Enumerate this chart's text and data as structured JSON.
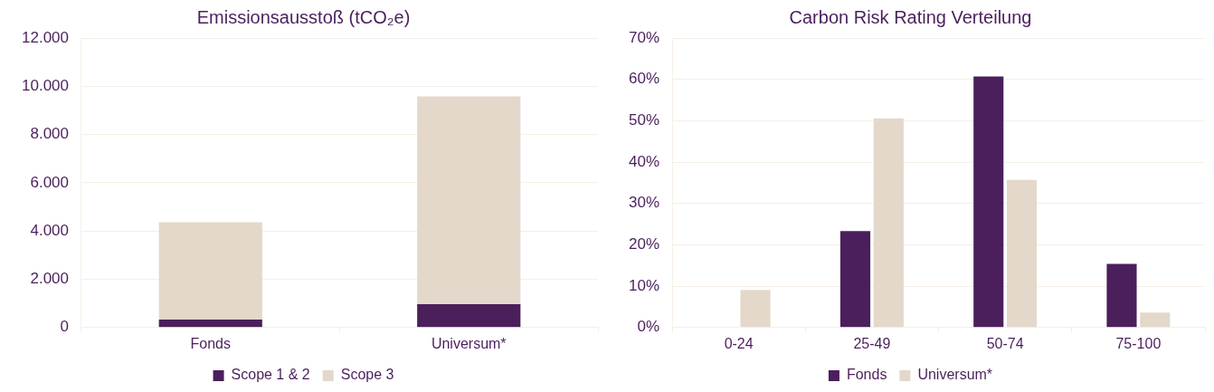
{
  "chart_data": [
    {
      "type": "bar",
      "title": "Emissionsausstoß (tCO₂e)",
      "categories": [
        "Fonds",
        "Universum*"
      ],
      "stacked": true,
      "series": [
        {
          "name": "Scope 1 & 2",
          "color": "#4a1f5c",
          "values": [
            330,
            970
          ]
        },
        {
          "name": "Scope 3",
          "color": "#e3d8ca",
          "values": [
            4030,
            8610
          ]
        }
      ],
      "ylim": [
        0,
        12000
      ],
      "yticks": [
        {
          "value": 0,
          "label": "0"
        },
        {
          "value": 2000,
          "label": "2.000"
        },
        {
          "value": 4000,
          "label": "4.000"
        },
        {
          "value": 6000,
          "label": "6.000"
        },
        {
          "value": 8000,
          "label": "8.000"
        },
        {
          "value": 10000,
          "label": "10.000"
        },
        {
          "value": 12000,
          "label": "12.000"
        }
      ],
      "grid": "y",
      "legend": "bottom"
    },
    {
      "type": "bar",
      "title": "Carbon Risk Rating Verteilung",
      "categories": [
        "0-24",
        "25-49",
        "50-74",
        "75-100"
      ],
      "series": [
        {
          "name": "Fonds",
          "color": "#4a1f5c",
          "values": [
            0,
            23.3,
            60.7,
            15.4
          ]
        },
        {
          "name": "Universum*",
          "color": "#e3d8ca",
          "values": [
            9.1,
            50.6,
            35.7,
            3.6
          ]
        }
      ],
      "ylim": [
        0,
        70
      ],
      "yticks": [
        {
          "value": 0,
          "label": "0%"
        },
        {
          "value": 10,
          "label": "10%"
        },
        {
          "value": 20,
          "label": "20%"
        },
        {
          "value": 30,
          "label": "30%"
        },
        {
          "value": 40,
          "label": "40%"
        },
        {
          "value": 50,
          "label": "50%"
        },
        {
          "value": 60,
          "label": "60%"
        },
        {
          "value": 70,
          "label": "70%"
        }
      ],
      "grid": "y",
      "legend": "bottom"
    }
  ]
}
